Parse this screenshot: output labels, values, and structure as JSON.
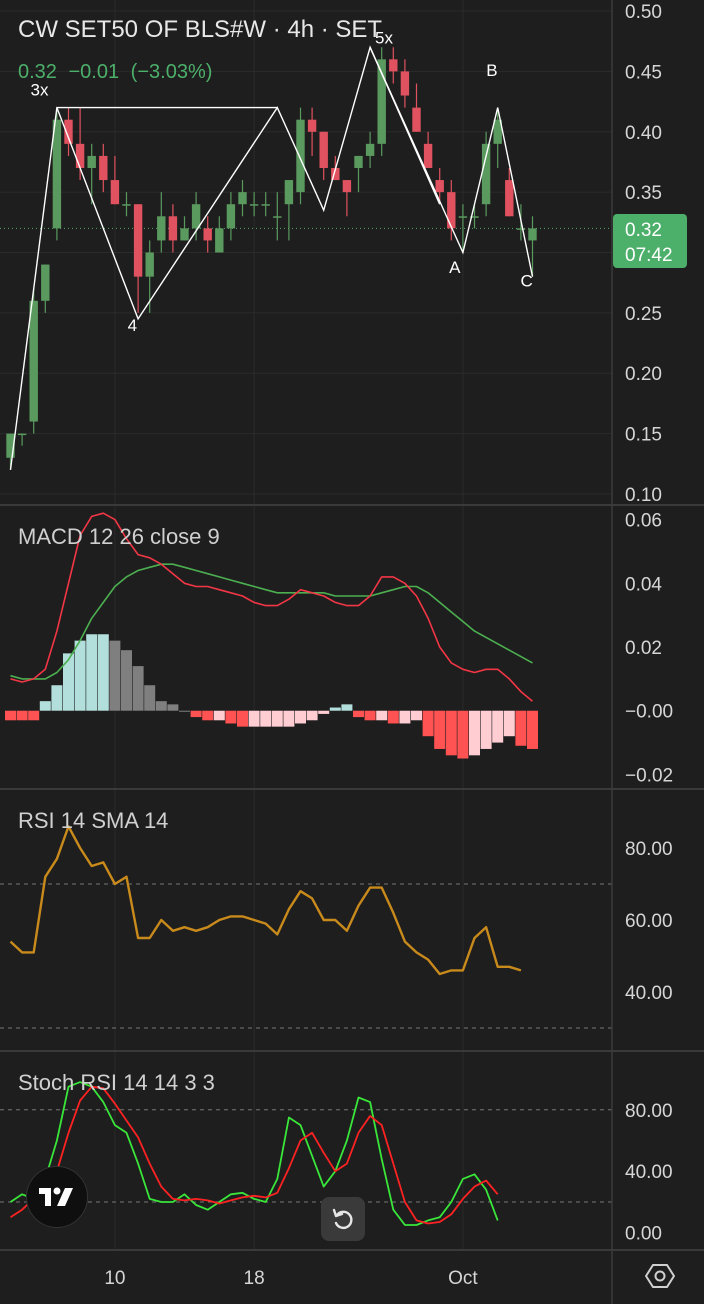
{
  "header": {
    "title": "CW SET50 OF BLS#W · 4h · SET",
    "price": "0.32",
    "change": "−0.01",
    "change_pct": "(−3.03%)"
  },
  "price_badge": {
    "price": "0.32",
    "countdown": "07:42",
    "color": "#4caf6a"
  },
  "colors": {
    "up": "#5b9a5f",
    "down": "#e0525f",
    "background": "#1e1e1e"
  },
  "panes": {
    "macd_label": "MACD 12 26 close 9",
    "rsi_label": "RSI 14 SMA 14",
    "stoch_label": "Stoch RSI 14 14 3 3"
  },
  "icons": {
    "logo": "tradingview-logo-icon",
    "reset": "reset-chart-icon",
    "settings": "settings-icon"
  },
  "chart_data": [
    {
      "type": "candlestick",
      "name": "price",
      "yticks": [
        "0.50",
        "0.45",
        "0.40",
        "0.35",
        "0.30",
        "0.25",
        "0.20",
        "0.15",
        "0.10"
      ],
      "ylim": [
        0.095,
        0.505
      ],
      "xticks": [
        {
          "i": 9,
          "label": "10"
        },
        {
          "i": 21,
          "label": "18"
        },
        {
          "i": 39,
          "label": "Oct"
        }
      ],
      "candles": [
        [
          0.13,
          0.15,
          0.12,
          0.15
        ],
        [
          0.15,
          0.15,
          0.14,
          0.15
        ],
        [
          0.16,
          0.27,
          0.15,
          0.26
        ],
        [
          0.26,
          0.29,
          0.25,
          0.29
        ],
        [
          0.32,
          0.42,
          0.31,
          0.41
        ],
        [
          0.41,
          0.42,
          0.38,
          0.39
        ],
        [
          0.39,
          0.42,
          0.36,
          0.37
        ],
        [
          0.37,
          0.39,
          0.34,
          0.38
        ],
        [
          0.38,
          0.39,
          0.35,
          0.36
        ],
        [
          0.36,
          0.38,
          0.34,
          0.34
        ],
        [
          0.34,
          0.35,
          0.33,
          0.34
        ],
        [
          0.34,
          0.34,
          0.25,
          0.28
        ],
        [
          0.28,
          0.31,
          0.25,
          0.3
        ],
        [
          0.31,
          0.35,
          0.3,
          0.33
        ],
        [
          0.33,
          0.34,
          0.3,
          0.31
        ],
        [
          0.31,
          0.33,
          0.31,
          0.32
        ],
        [
          0.32,
          0.35,
          0.31,
          0.34
        ],
        [
          0.32,
          0.33,
          0.3,
          0.31
        ],
        [
          0.3,
          0.33,
          0.3,
          0.32
        ],
        [
          0.32,
          0.35,
          0.31,
          0.34
        ],
        [
          0.34,
          0.36,
          0.33,
          0.35
        ],
        [
          0.34,
          0.35,
          0.33,
          0.34
        ],
        [
          0.34,
          0.35,
          0.33,
          0.34
        ],
        [
          0.33,
          0.35,
          0.31,
          0.33
        ],
        [
          0.34,
          0.36,
          0.31,
          0.36
        ],
        [
          0.35,
          0.42,
          0.34,
          0.41
        ],
        [
          0.41,
          0.42,
          0.38,
          0.4
        ],
        [
          0.4,
          0.4,
          0.36,
          0.37
        ],
        [
          0.37,
          0.38,
          0.36,
          0.36
        ],
        [
          0.36,
          0.36,
          0.33,
          0.35
        ],
        [
          0.37,
          0.38,
          0.35,
          0.38
        ],
        [
          0.38,
          0.4,
          0.37,
          0.39
        ],
        [
          0.39,
          0.47,
          0.38,
          0.46
        ],
        [
          0.46,
          0.47,
          0.44,
          0.45
        ],
        [
          0.45,
          0.46,
          0.42,
          0.43
        ],
        [
          0.42,
          0.44,
          0.4,
          0.4
        ],
        [
          0.39,
          0.4,
          0.37,
          0.37
        ],
        [
          0.36,
          0.37,
          0.34,
          0.35
        ],
        [
          0.35,
          0.36,
          0.31,
          0.32
        ],
        [
          0.33,
          0.34,
          0.3,
          0.33
        ],
        [
          0.33,
          0.34,
          0.32,
          0.33
        ],
        [
          0.34,
          0.4,
          0.33,
          0.39
        ],
        [
          0.39,
          0.42,
          0.37,
          0.41
        ],
        [
          0.36,
          0.37,
          0.33,
          0.33
        ],
        [
          0.32,
          0.34,
          0.31,
          0.32
        ],
        [
          0.31,
          0.33,
          0.28,
          0.32
        ]
      ],
      "wave_lines": [
        [
          [
            0,
            0.12
          ],
          [
            4,
            0.42
          ],
          [
            23,
            0.42
          ]
        ],
        [
          [
            4,
            0.42
          ],
          [
            11,
            0.245
          ],
          [
            23,
            0.42
          ],
          [
            27,
            0.335
          ],
          [
            31,
            0.47
          ],
          [
            37,
            0.34
          ]
        ],
        [
          [
            31,
            0.47
          ],
          [
            39,
            0.3
          ],
          [
            42,
            0.42
          ],
          [
            45,
            0.28
          ]
        ]
      ],
      "wave_labels": [
        {
          "i": 2.5,
          "v": 0.43,
          "text": "3x"
        },
        {
          "i": 10.5,
          "v": 0.235,
          "text": "4"
        },
        {
          "i": 32.2,
          "v": 0.473,
          "text": "5x"
        },
        {
          "i": 38.3,
          "v": 0.283,
          "text": "A"
        },
        {
          "i": 41.5,
          "v": 0.446,
          "text": "B"
        },
        {
          "i": 44.5,
          "v": 0.272,
          "text": "C"
        }
      ]
    },
    {
      "type": "macd",
      "yticks": [
        "0.06",
        "0.04",
        "0.02",
        "−0.00",
        "−0.02"
      ],
      "ylim": [
        -0.023,
        0.063
      ],
      "macd": [
        0.01,
        0.009,
        0.01,
        0.013,
        0.025,
        0.04,
        0.055,
        0.061,
        0.062,
        0.06,
        0.054,
        0.049,
        0.048,
        0.046,
        0.043,
        0.04,
        0.039,
        0.039,
        0.038,
        0.037,
        0.036,
        0.034,
        0.033,
        0.033,
        0.035,
        0.038,
        0.037,
        0.036,
        0.034,
        0.033,
        0.033,
        0.036,
        0.042,
        0.042,
        0.04,
        0.036,
        0.029,
        0.02,
        0.015,
        0.013,
        0.012,
        0.013,
        0.013,
        0.01,
        0.006,
        0.003
      ],
      "signal": [
        0.011,
        0.01,
        0.01,
        0.01,
        0.012,
        0.016,
        0.022,
        0.029,
        0.034,
        0.039,
        0.042,
        0.044,
        0.045,
        0.046,
        0.046,
        0.045,
        0.044,
        0.043,
        0.042,
        0.041,
        0.04,
        0.039,
        0.038,
        0.037,
        0.037,
        0.037,
        0.037,
        0.037,
        0.036,
        0.036,
        0.036,
        0.036,
        0.037,
        0.038,
        0.039,
        0.039,
        0.037,
        0.034,
        0.031,
        0.028,
        0.025,
        0.023,
        0.021,
        0.019,
        0.017,
        0.015
      ],
      "histogram": [
        -0.003,
        -0.003,
        -0.003,
        0.003,
        0.008,
        0.018,
        0.022,
        0.024,
        0.024,
        0.022,
        0.019,
        0.014,
        0.008,
        0.003,
        0.002,
        0.0,
        -0.002,
        -0.003,
        -0.003,
        -0.004,
        -0.005,
        -0.005,
        -0.005,
        -0.005,
        -0.005,
        -0.004,
        -0.003,
        -0.001,
        0.001,
        0.002,
        -0.002,
        -0.003,
        -0.003,
        -0.004,
        -0.004,
        -0.003,
        -0.008,
        -0.012,
        -0.014,
        -0.015,
        -0.014,
        -0.012,
        -0.01,
        -0.008,
        -0.011,
        -0.012
      ]
    },
    {
      "type": "line",
      "name": "rsi",
      "yticks": [
        "80.00",
        "60.00",
        "40.00"
      ],
      "ylim": [
        25,
        95
      ],
      "levels": [
        70,
        30
      ],
      "values": [
        54,
        51,
        51,
        72,
        77,
        86,
        80,
        75,
        76,
        70,
        72,
        55,
        55,
        60,
        57,
        58,
        57,
        58,
        60,
        61,
        61,
        60,
        59,
        56,
        63,
        68,
        66,
        60,
        60,
        57,
        64,
        69,
        69,
        62,
        54,
        51,
        49,
        45,
        46,
        46,
        55,
        58,
        47,
        47,
        46
      ]
    },
    {
      "type": "line",
      "name": "stoch_rsi",
      "yticks": [
        "80.00",
        "40.00",
        "0.00"
      ],
      "ylim": [
        -8,
        115
      ],
      "levels": [
        80,
        20
      ],
      "k": [
        20,
        25,
        22,
        35,
        60,
        95,
        98,
        95,
        85,
        70,
        65,
        45,
        22,
        20,
        20,
        25,
        18,
        15,
        20,
        25,
        26,
        22,
        20,
        35,
        75,
        70,
        50,
        30,
        40,
        60,
        88,
        85,
        48,
        15,
        5,
        5,
        8,
        10,
        20,
        35,
        38,
        28,
        8
      ],
      "d": [
        10,
        15,
        22,
        28,
        40,
        65,
        86,
        95,
        94,
        84,
        73,
        62,
        45,
        30,
        22,
        21,
        22,
        21,
        19,
        21,
        23,
        24,
        23,
        26,
        42,
        60,
        65,
        52,
        40,
        45,
        65,
        76,
        70,
        45,
        20,
        8,
        6,
        7,
        12,
        22,
        30,
        34,
        25
      ]
    }
  ]
}
